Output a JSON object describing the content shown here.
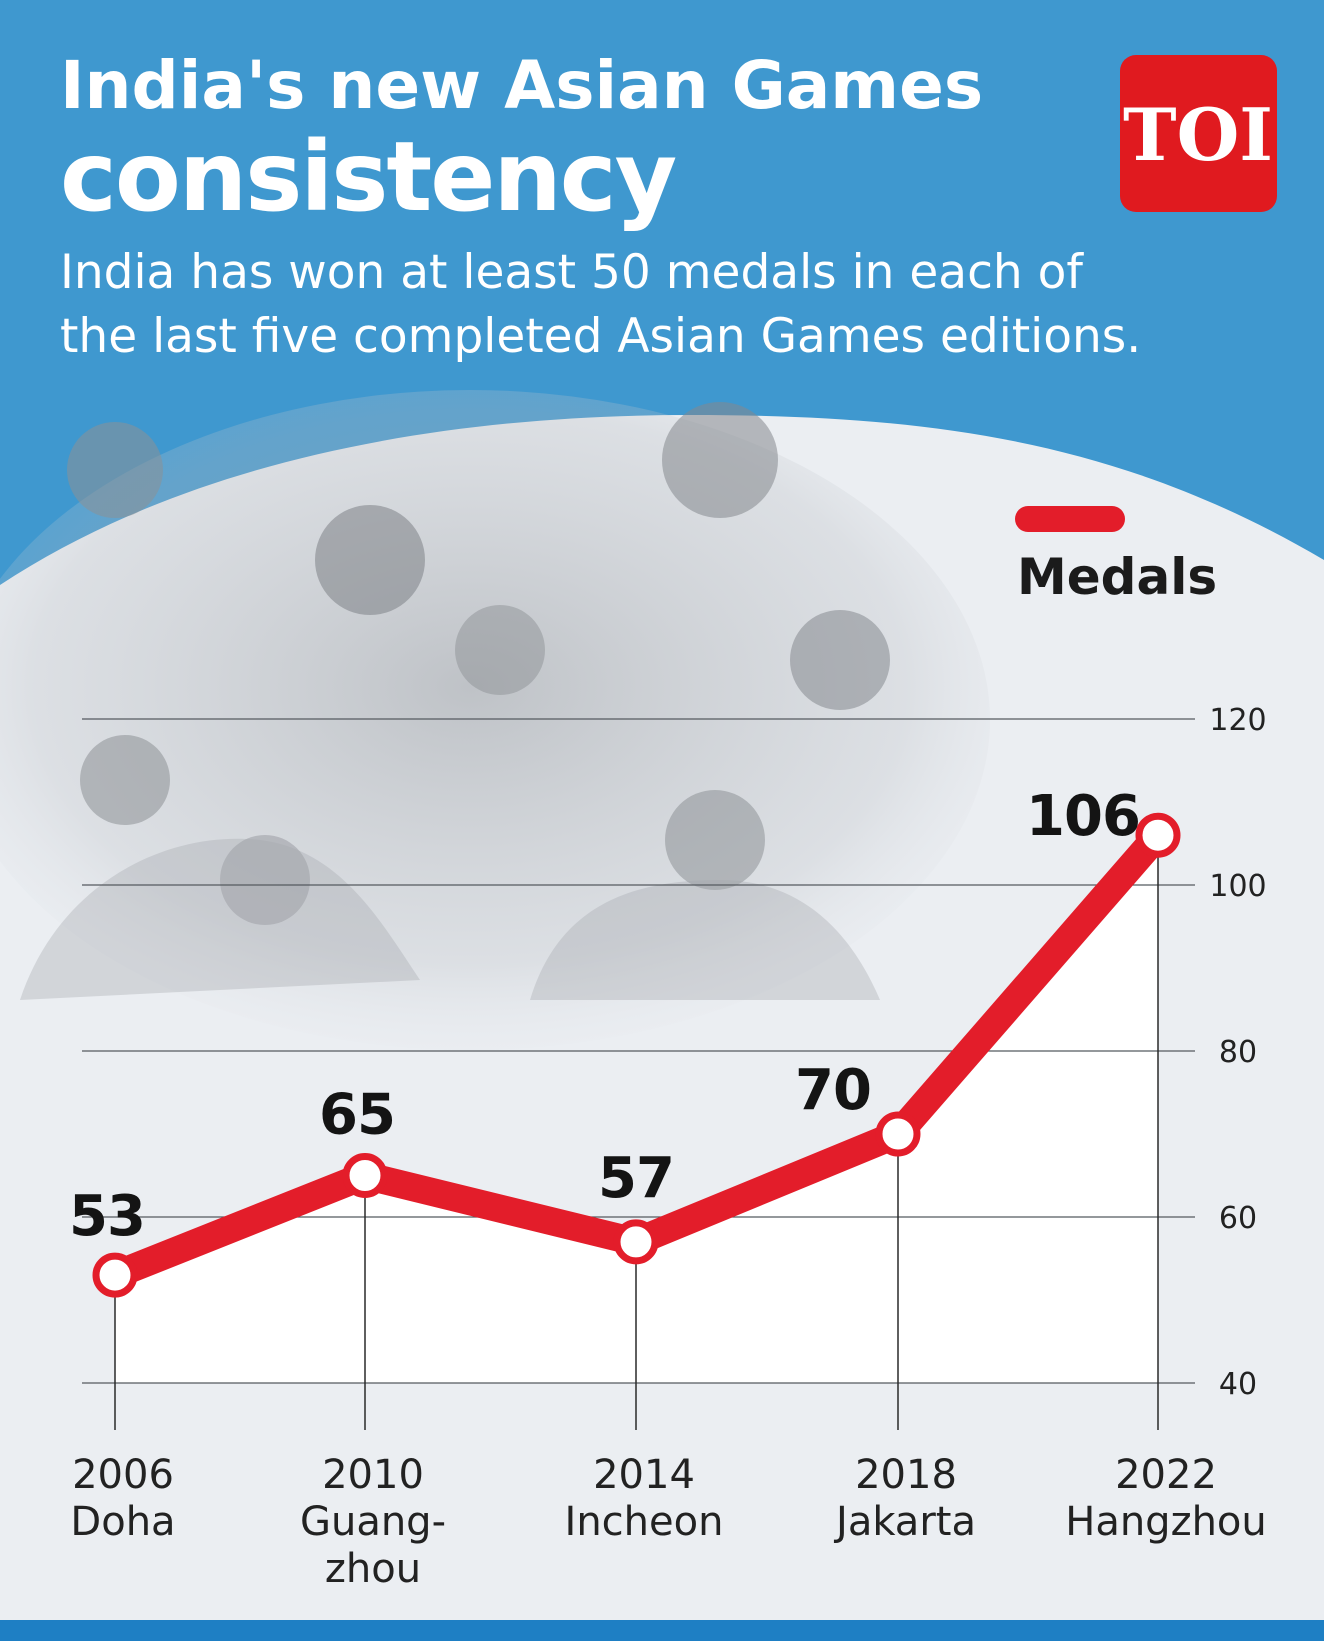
{
  "header": {
    "title_line1": "India's new Asian Games",
    "title_line2": "consistency",
    "subtitle_line1": "India has won at least 50 medals in each of",
    "subtitle_line2": "the last five completed Asian Games editions."
  },
  "logo": {
    "text": "TOI"
  },
  "colors": {
    "header_bg": "#3f98cf",
    "page_bg": "#ebeef2",
    "accent_red": "#e31d2a",
    "logo_bg": "#e01a1f",
    "footer_bar": "#1e7fc4"
  },
  "chart_data": {
    "type": "line",
    "title": "India's new Asian Games consistency",
    "subtitle": "India has won at least 50 medals in each of the last five completed Asian Games editions.",
    "categories": [
      {
        "year": "2006",
        "city": [
          "Doha"
        ]
      },
      {
        "year": "2010",
        "city": [
          "Guang-",
          "zhou"
        ]
      },
      {
        "year": "2014",
        "city": [
          "Incheon"
        ]
      },
      {
        "year": "2018",
        "city": [
          "Jakarta"
        ]
      },
      {
        "year": "2022",
        "city": [
          "Hangzhou"
        ]
      }
    ],
    "series": [
      {
        "name": "Medals",
        "color": "#e31d2a",
        "values": [
          53,
          65,
          57,
          70,
          106
        ]
      }
    ],
    "data_labels": [
      "53",
      "65",
      "57",
      "70",
      "106"
    ],
    "yticks": [
      40,
      60,
      80,
      100,
      120
    ],
    "ytick_labels": [
      "40",
      "60",
      "80",
      "100",
      "120"
    ],
    "ylim": [
      40,
      120
    ],
    "y_axis_side": "right",
    "grid": true,
    "legend": {
      "position": "top-right"
    },
    "xlabel": "",
    "ylabel": ""
  }
}
